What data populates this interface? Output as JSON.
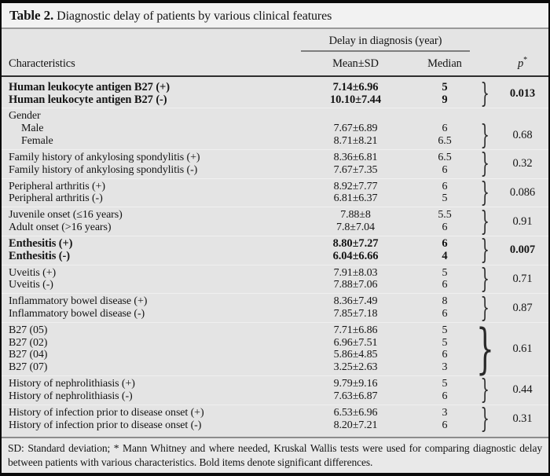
{
  "title": {
    "label": "Table 2.",
    "text": "Diagnostic delay of patients by various clinical features"
  },
  "header": {
    "span_header": "Delay in diagnosis (year)",
    "characteristics": "Characteristics",
    "mean_sd": "Mean±SD",
    "median": "Median",
    "p_label": "p",
    "p_sup": "*"
  },
  "brace_glyph": "}",
  "groups": [
    {
      "bold": true,
      "rows": [
        {
          "label": "Human leukocyte antigen B27 (+)",
          "mean": "7.14±6.96",
          "median": "5"
        },
        {
          "label": "Human leukocyte antigen B27 (-)",
          "mean": "10.10±7.44",
          "median": "9"
        }
      ],
      "p": "0.013"
    },
    {
      "header": "Gender",
      "indent_rows": true,
      "rows": [
        {
          "label": "Male",
          "mean": "7.67±6.89",
          "median": "6"
        },
        {
          "label": "Female",
          "mean": "8.71±8.21",
          "median": "6.5"
        }
      ],
      "p": "0.68"
    },
    {
      "rows": [
        {
          "label": "Family history of ankylosing spondylitis (+)",
          "mean": "8.36±6.81",
          "median": "6.5"
        },
        {
          "label": "Family history of ankylosing spondylitis (-)",
          "mean": "7.67±7.35",
          "median": "6"
        }
      ],
      "p": "0.32"
    },
    {
      "rows": [
        {
          "label": "Peripheral arthritis (+)",
          "mean": "8.92±7.77",
          "median": "6"
        },
        {
          "label": "Peripheral arthritis (-)",
          "mean": "6.81±6.37",
          "median": "5"
        }
      ],
      "p": "0.086"
    },
    {
      "rows": [
        {
          "label": "Juvenile onset (≤16 years)",
          "mean": "7.88±8",
          "median": "5.5"
        },
        {
          "label": "Adult onset (>16 years)",
          "mean": "7.8±7.04",
          "median": "6"
        }
      ],
      "p": "0.91"
    },
    {
      "bold": true,
      "rows": [
        {
          "label": "Enthesitis (+)",
          "mean": "8.80±7.27",
          "median": "6"
        },
        {
          "label": "Enthesitis (-)",
          "mean": "6.04±6.66",
          "median": "4"
        }
      ],
      "p": "0.007"
    },
    {
      "rows": [
        {
          "label": "Uveitis (+)",
          "mean": "7.91±8.03",
          "median": "5"
        },
        {
          "label": "Uveitis (-)",
          "mean": "7.88±7.06",
          "median": "6"
        }
      ],
      "p": "0.71"
    },
    {
      "rows": [
        {
          "label": "Inflammatory bowel disease (+)",
          "mean": "8.36±7.49",
          "median": "8"
        },
        {
          "label": "Inflammatory bowel disease (-)",
          "mean": "7.85±7.18",
          "median": "6"
        }
      ],
      "p": "0.87"
    },
    {
      "rows": [
        {
          "label": "B27 (05)",
          "mean": "7.71±6.86",
          "median": "5"
        },
        {
          "label": "B27 (02)",
          "mean": "6.96±7.51",
          "median": "5"
        },
        {
          "label": "B27 (04)",
          "mean": "5.86±4.85",
          "median": "6"
        },
        {
          "label": "B27 (07)",
          "mean": "3.25±2.63",
          "median": "3"
        }
      ],
      "p": "0.61"
    },
    {
      "rows": [
        {
          "label": "History of nephrolithiasis (+)",
          "mean": "9.79±9.16",
          "median": "5"
        },
        {
          "label": "History of nephrolithiasis (-)",
          "mean": "7.63±6.87",
          "median": "6"
        }
      ],
      "p": "0.44"
    },
    {
      "rows": [
        {
          "label": "History of infection prior to disease onset (+)",
          "mean": "6.53±6.96",
          "median": "3"
        },
        {
          "label": "History of infection prior to disease onset (-)",
          "mean": "8.20±7.21",
          "median": "6"
        }
      ],
      "p": "0.31"
    }
  ],
  "footer": {
    "text": "SD: Standard deviation; * Mann Whitney and where needed, Kruskal Wallis tests were used for comparing diagnostic delay between patients with various characteristics. Bold items denote significant differences."
  },
  "colors": {
    "card_background": "#e4e4e4",
    "title_background": "#f2f2f2",
    "border": "#0a0a0a",
    "rule_gray": "#8c8c8c"
  }
}
